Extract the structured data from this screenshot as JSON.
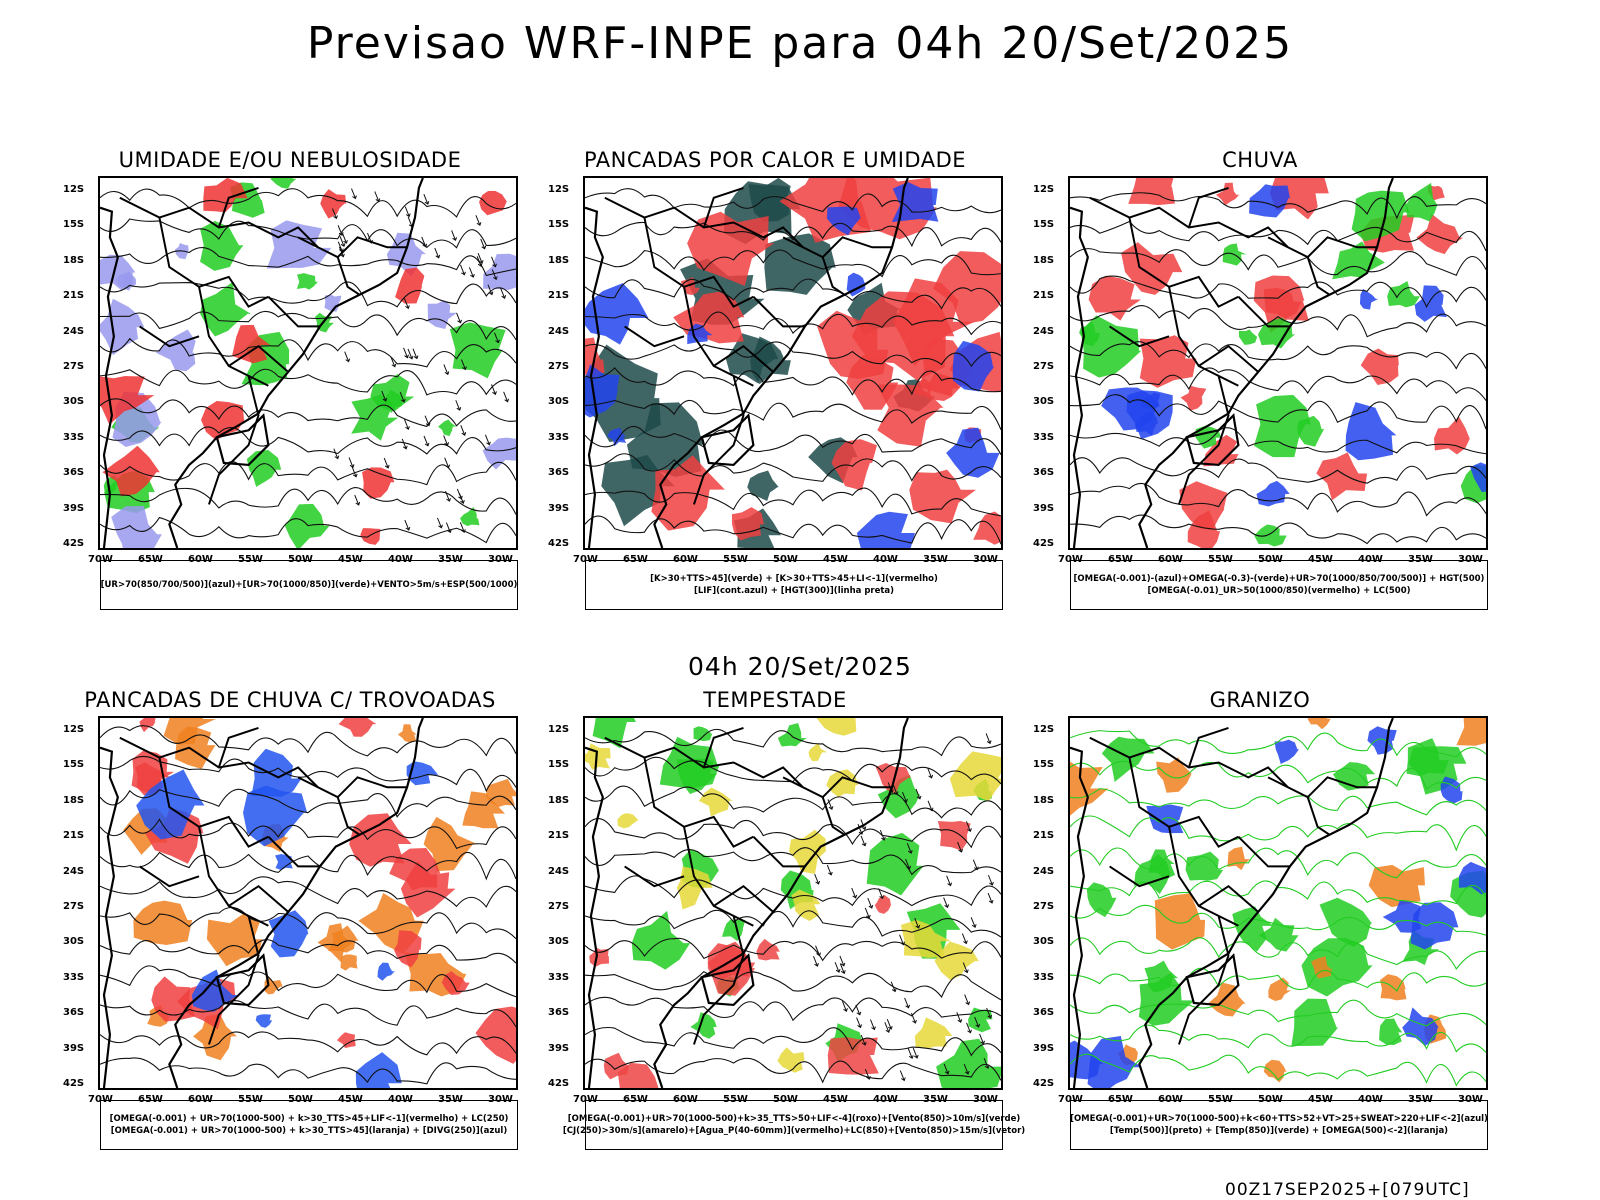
{
  "page": {
    "title": "Previsao WRF-INPE  para 04h 20/Set/2025",
    "subtitle": "04h 20/Set/2025",
    "footer": "00Z17SEP2025+[079UTC]"
  },
  "axes": {
    "lat": [
      "12S",
      "15S",
      "18S",
      "21S",
      "24S",
      "27S",
      "30S",
      "33S",
      "36S",
      "39S",
      "42S"
    ],
    "lon": [
      "70W",
      "65W",
      "60W",
      "55W",
      "50W",
      "45W",
      "40W",
      "35W",
      "30W"
    ]
  },
  "panels": [
    {
      "id": "umidade",
      "title": "UMIDADE E/OU NEBULOSIDADE",
      "legend": [
        "[UR>70(850/700/500)](azul)+[UR>70(1000/850)](verde)+VENTO>5m/s+ESP(500/1000)"
      ],
      "colors": {
        "a": "#22cc22",
        "b": "#9999ee",
        "c": "#ee3333"
      }
    },
    {
      "id": "pancadas-calor",
      "title": "PANCADAS POR CALOR E UMIDADE",
      "legend": [
        "[K>30+TTS>45](verde) + [K>30+TTS>45+LI<-1](vermelho)",
        "[LIF](cont.azul) + [HGT(300)](linha preta)"
      ],
      "colors": {
        "a": "#1f4a4a",
        "b": "#f04040",
        "c": "#2244ee"
      }
    },
    {
      "id": "chuva",
      "title": "CHUVA",
      "legend": [
        "[OMEGA(-0.001)-(azul)+OMEGA(-0.3)-(verde)+UR>70(1000/850/700/500)] + HGT(500)",
        "[OMEGA(-0.01)_UR>50(1000/850)(vermelho) + LC(500)"
      ],
      "colors": {
        "a": "#f04040",
        "b": "#22cc22",
        "c": "#2244ee"
      }
    },
    {
      "id": "trovoadas",
      "title": "PANCADAS DE CHUVA C/ TROVOADAS",
      "legend": [
        "[OMEGA(-0.001) + UR>70(1000-500) + k>30_TTS>45+LIF<-1](vermelho) + LC(250)",
        "[OMEGA(-0.001) + UR>70(1000-500) + k>30_TTS>45](laranja) + [DIVG(250)](azul)"
      ],
      "colors": {
        "a": "#f08020",
        "b": "#f04040",
        "c": "#2255ee"
      }
    },
    {
      "id": "tempestade",
      "title": "TEMPESTADE",
      "legend": [
        "[OMEGA(-0.001)+UR>70(1000-500)+k>35_TTS>50+LIF<-4](roxo)+[Vento(850)>10m/s](verde)",
        "[CJ(250)>30m/s](amarelo)+[Agua_P(40-60mm)](vermelho)+LC(850)+[Vento(850)>15m/s](vetor)"
      ],
      "colors": {
        "a": "#22cc22",
        "b": "#e6d83a",
        "c": "#ee4444"
      }
    },
    {
      "id": "granizo",
      "title": "GRANIZO",
      "legend": [
        "[OMEGA(-0.001)+UR>70(1000-500)+k<60+TTS>52+VT>25+SWEAT>220+LIF<-2](azul)",
        "[Temp(500)](preto) + [Temp(850)](verde) + [OMEGA(500)<-2](laranja)"
      ],
      "colors": {
        "a": "#22cc22",
        "b": "#f08020",
        "c": "#2244ee"
      }
    }
  ]
}
